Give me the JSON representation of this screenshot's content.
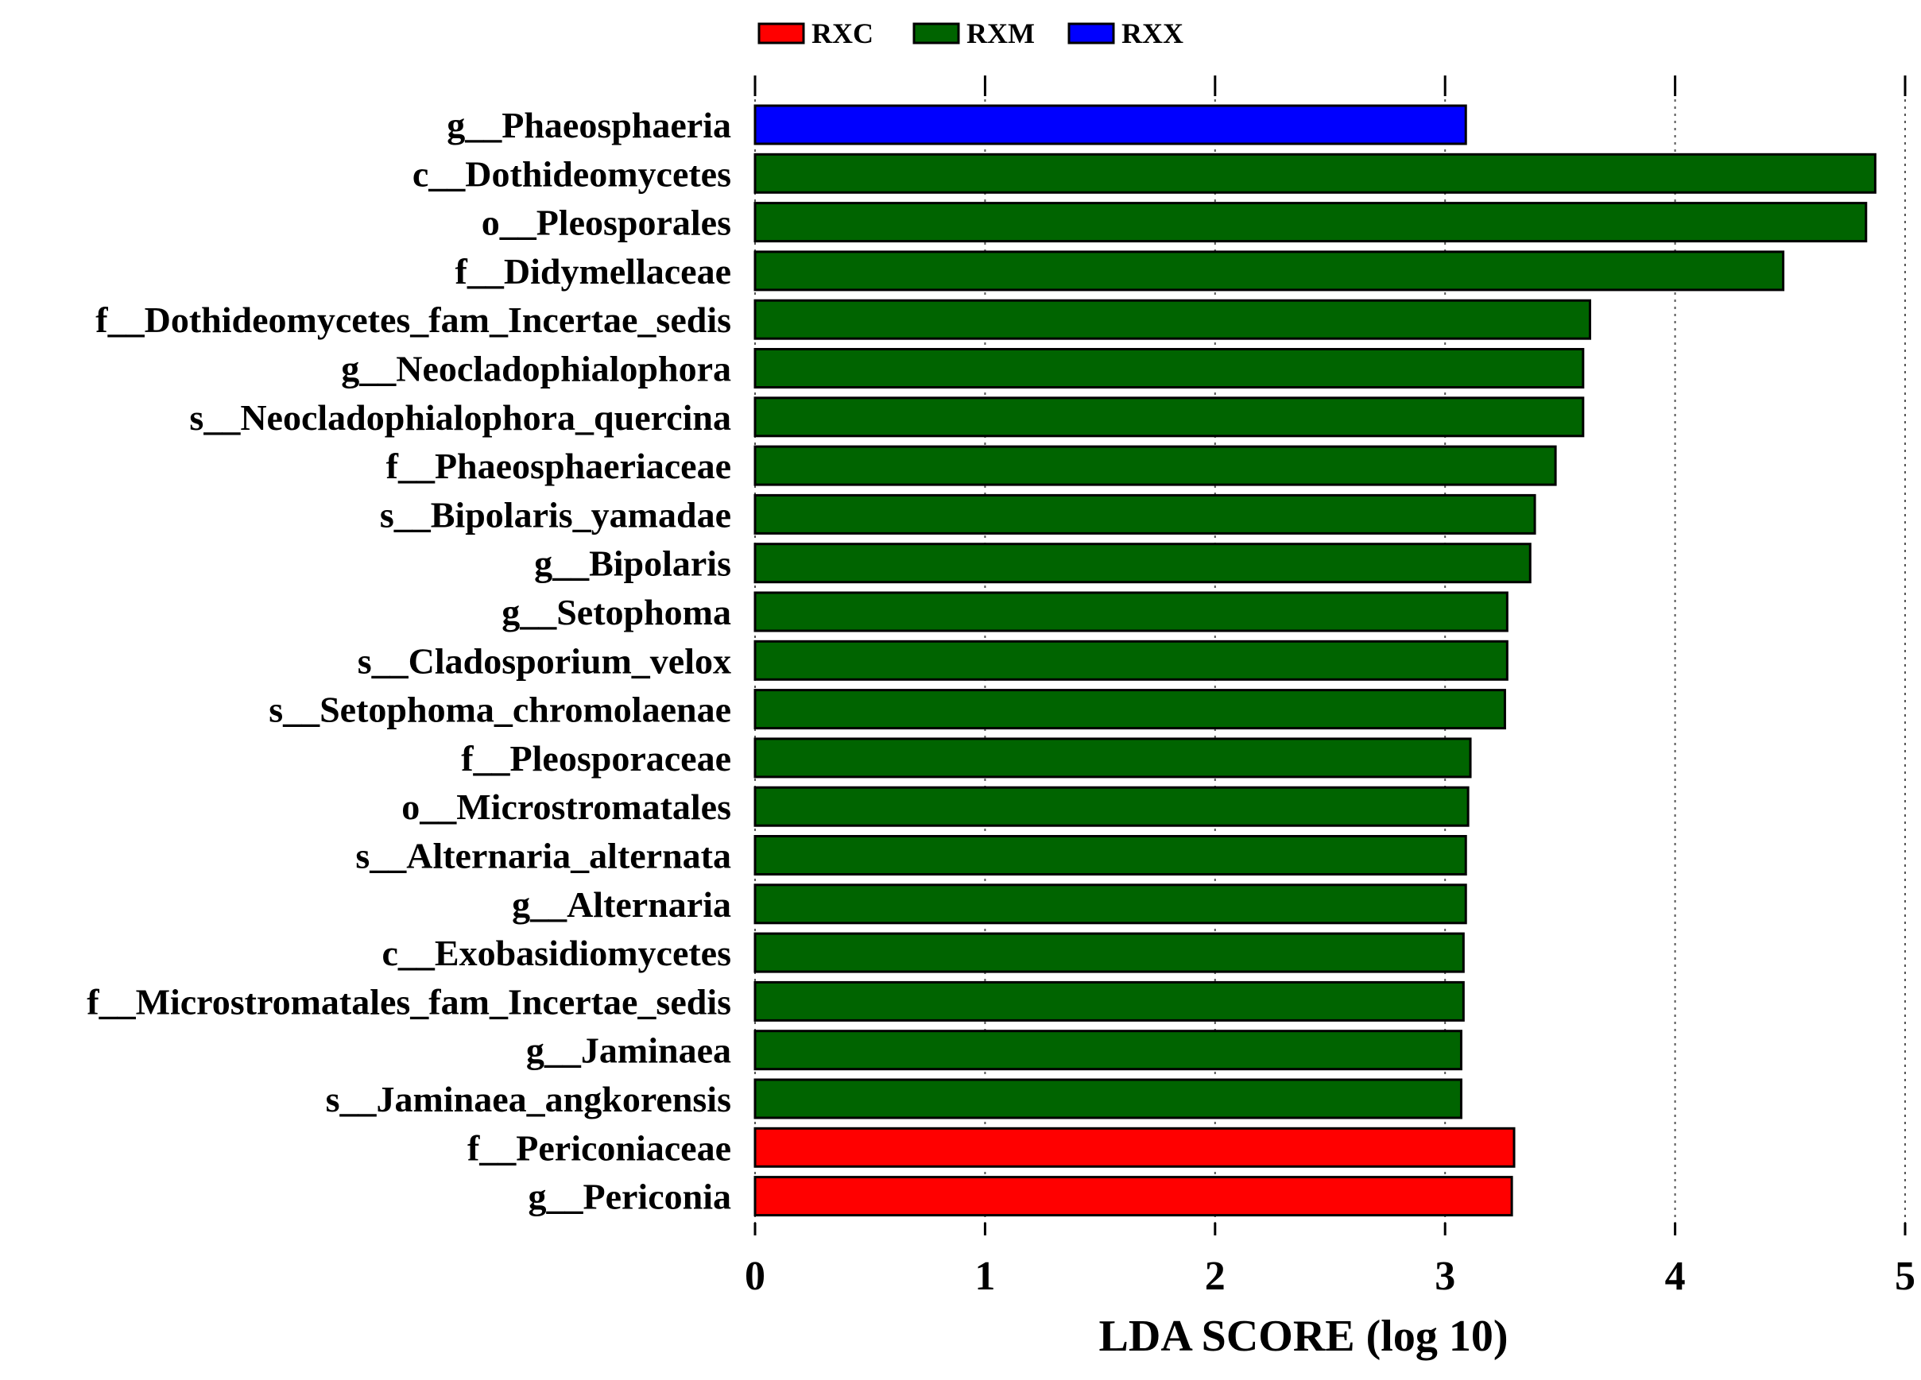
{
  "chart_data": {
    "type": "bar",
    "orientation": "horizontal",
    "title": "",
    "xlabel": "LDA SCORE (log 10)",
    "ylabel": "",
    "xlim": [
      0,
      5
    ],
    "xticks": [
      "0",
      "1",
      "2",
      "3",
      "4",
      "5"
    ],
    "grid": "vertical dotted",
    "legend_position": "top",
    "legend": [
      {
        "name": "RXC",
        "color": "#ff0000"
      },
      {
        "name": "RXM",
        "color": "#006400"
      },
      {
        "name": "RXX",
        "color": "#0000ff"
      }
    ],
    "categories": [
      "g__Phaeosphaeria",
      "c__Dothideomycetes",
      "o__Pleosporales",
      "f__Didymellaceae",
      "f__Dothideomycetes_fam_Incertae_sedis",
      "g__Neocladophialophora",
      "s__Neocladophialophora_quercina",
      "f__Phaeosphaeriaceae",
      "s__Bipolaris_yamadae",
      "g__Bipolaris",
      "g__Setophoma",
      "s__Cladosporium_velox",
      "s__Setophoma_chromolaenae",
      "f__Pleosporaceae",
      "o__Microstromatales",
      "s__Alternaria_alternata",
      "g__Alternaria",
      "c__Exobasidiomycetes",
      "f__Microstromatales_fam_Incertae_sedis",
      "g__Jaminaea",
      "s__Jaminaea_angkorensis",
      "f__Periconiaceae",
      "g__Periconia"
    ],
    "values": [
      3.09,
      4.87,
      4.83,
      4.47,
      3.63,
      3.6,
      3.6,
      3.48,
      3.39,
      3.37,
      3.27,
      3.27,
      3.26,
      3.11,
      3.1,
      3.09,
      3.09,
      3.08,
      3.08,
      3.07,
      3.07,
      3.3,
      3.29
    ],
    "groups": [
      "RXX",
      "RXM",
      "RXM",
      "RXM",
      "RXM",
      "RXM",
      "RXM",
      "RXM",
      "RXM",
      "RXM",
      "RXM",
      "RXM",
      "RXM",
      "RXM",
      "RXM",
      "RXM",
      "RXM",
      "RXM",
      "RXM",
      "RXM",
      "RXM",
      "RXC",
      "RXC"
    ]
  }
}
